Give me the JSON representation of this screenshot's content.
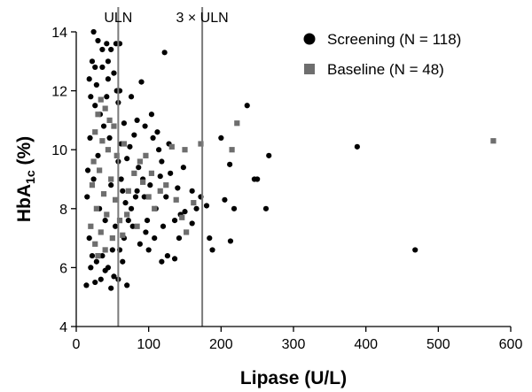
{
  "chart_data": {
    "type": "scatter",
    "xlabel": "Lipase (U/L)",
    "ylabel": "HbA1c (%)",
    "ylabel_parts": {
      "base": "HbA",
      "sub": "1c",
      "suffix": " (%)"
    },
    "xlim": [
      0,
      600
    ],
    "ylim": [
      4,
      14
    ],
    "xticks": [
      0,
      100,
      200,
      300,
      400,
      500,
      600
    ],
    "yticks": [
      4,
      6,
      8,
      10,
      12,
      14
    ],
    "grid": false,
    "legend_position": "top-right",
    "reference_lines": [
      {
        "label": "ULN",
        "x": 58,
        "color": "#7a7a7a"
      },
      {
        "label": "3 × ULN",
        "x": 174,
        "color": "#7a7a7a"
      }
    ],
    "series": [
      {
        "name": "Screening (N = 118)",
        "marker": "circle",
        "color": "#000000",
        "points": [
          [
            24,
            14.0
          ],
          [
            30,
            13.7
          ],
          [
            42,
            13.6
          ],
          [
            55,
            13.6
          ],
          [
            60,
            13.6
          ],
          [
            48,
            13.4
          ],
          [
            122,
            13.3
          ],
          [
            22,
            13.0
          ],
          [
            36,
            12.8
          ],
          [
            52,
            12.6
          ],
          [
            28,
            12.2
          ],
          [
            44,
            12.4
          ],
          [
            236,
            11.5
          ],
          [
            20,
            11.8
          ],
          [
            33,
            11.2
          ],
          [
            58,
            11.6
          ],
          [
            66,
            10.9
          ],
          [
            80,
            10.5
          ],
          [
            95,
            10.8
          ],
          [
            106,
            10.4
          ],
          [
            112,
            10.6
          ],
          [
            200,
            10.4
          ],
          [
            266,
            9.8
          ],
          [
            212,
            9.5
          ],
          [
            246,
            9.0
          ],
          [
            250,
            9.0
          ],
          [
            388,
            10.1
          ],
          [
            148,
            9.4
          ],
          [
            118,
            9.6
          ],
          [
            130,
            9.2
          ],
          [
            140,
            8.7
          ],
          [
            160,
            8.6
          ],
          [
            172,
            8.4
          ],
          [
            205,
            8.3
          ],
          [
            180,
            8.1
          ],
          [
            150,
            7.9
          ],
          [
            136,
            7.6
          ],
          [
            120,
            7.4
          ],
          [
            108,
            7.0
          ],
          [
            96,
            7.2
          ],
          [
            88,
            6.8
          ],
          [
            100,
            6.6
          ],
          [
            78,
            7.4
          ],
          [
            84,
            8.6
          ],
          [
            92,
            9.0
          ],
          [
            70,
            9.7
          ],
          [
            74,
            10.1
          ],
          [
            218,
            8.0
          ],
          [
            262,
            8.0
          ],
          [
            213,
            6.9
          ],
          [
            184,
            7.0
          ],
          [
            188,
            6.6
          ],
          [
            160,
            7.5
          ],
          [
            142,
            7.0
          ],
          [
            126,
            6.4
          ],
          [
            136,
            6.3
          ],
          [
            118,
            6.2
          ],
          [
            468,
            6.6
          ],
          [
            64,
            6.2
          ],
          [
            58,
            5.6
          ],
          [
            70,
            5.4
          ],
          [
            52,
            5.7
          ],
          [
            48,
            5.3
          ],
          [
            40,
            5.9
          ],
          [
            34,
            5.6
          ],
          [
            26,
            5.5
          ],
          [
            20,
            6.0
          ],
          [
            14,
            5.4
          ],
          [
            18,
            7.0
          ],
          [
            15,
            8.4
          ],
          [
            16,
            9.3
          ],
          [
            19,
            10.4
          ],
          [
            22,
            6.4
          ],
          [
            28,
            6.2
          ],
          [
            36,
            6.4
          ],
          [
            44,
            6.0
          ],
          [
            50,
            6.6
          ],
          [
            60,
            6.6
          ],
          [
            66,
            7.0
          ],
          [
            72,
            7.6
          ],
          [
            76,
            8.0
          ],
          [
            82,
            8.4
          ],
          [
            64,
            8.6
          ],
          [
            62,
            9.0
          ],
          [
            68,
            8.2
          ],
          [
            56,
            12.0
          ],
          [
            42,
            11.8
          ],
          [
            26,
            11.5
          ],
          [
            38,
            10.8
          ],
          [
            46,
            10.4
          ],
          [
            30,
            9.8
          ],
          [
            24,
            9.0
          ],
          [
            32,
            8.0
          ],
          [
            40,
            7.6
          ],
          [
            48,
            8.8
          ],
          [
            54,
            7.4
          ],
          [
            58,
            9.6
          ],
          [
            62,
            10.2
          ],
          [
            86,
            9.4
          ],
          [
            102,
            8.8
          ],
          [
            110,
            8.0
          ],
          [
            124,
            8.4
          ],
          [
            144,
            7.8
          ],
          [
            166,
            8.0
          ],
          [
            128,
            10.2
          ],
          [
            116,
            9.1
          ],
          [
            94,
            8.4
          ],
          [
            98,
            7.6
          ],
          [
            84,
            11.0
          ],
          [
            26,
            12.8
          ],
          [
            44,
            13.0
          ],
          [
            36,
            13.4
          ],
          [
            18,
            12.4
          ],
          [
            60,
            12.0
          ],
          [
            76,
            11.8
          ],
          [
            90,
            12.3
          ],
          [
            104,
            11.2
          ],
          [
            114,
            10.0
          ]
        ]
      },
      {
        "name": "Baseline (N = 48)",
        "marker": "square",
        "color": "#6e6e6e",
        "points": [
          [
            34,
            11.7
          ],
          [
            40,
            11.4
          ],
          [
            30,
            11.2
          ],
          [
            46,
            11.0
          ],
          [
            52,
            10.8
          ],
          [
            26,
            10.6
          ],
          [
            36,
            10.3
          ],
          [
            44,
            10.0
          ],
          [
            56,
            9.8
          ],
          [
            24,
            9.6
          ],
          [
            32,
            9.3
          ],
          [
            48,
            9.0
          ],
          [
            22,
            8.8
          ],
          [
            38,
            8.5
          ],
          [
            54,
            8.3
          ],
          [
            28,
            8.0
          ],
          [
            42,
            7.8
          ],
          [
            60,
            7.6
          ],
          [
            20,
            7.4
          ],
          [
            34,
            7.2
          ],
          [
            50,
            7.0
          ],
          [
            26,
            6.8
          ],
          [
            40,
            6.6
          ],
          [
            30,
            6.4
          ],
          [
            64,
            7.1
          ],
          [
            70,
            7.8
          ],
          [
            72,
            8.6
          ],
          [
            80,
            9.2
          ],
          [
            88,
            9.6
          ],
          [
            96,
            9.8
          ],
          [
            92,
            8.9
          ],
          [
            100,
            8.4
          ],
          [
            104,
            9.2
          ],
          [
            108,
            8.0
          ],
          [
            116,
            8.6
          ],
          [
            124,
            8.8
          ],
          [
            132,
            10.1
          ],
          [
            138,
            8.3
          ],
          [
            150,
            10.0
          ],
          [
            146,
            7.7
          ],
          [
            152,
            7.2
          ],
          [
            162,
            8.2
          ],
          [
            172,
            10.2
          ],
          [
            222,
            10.9
          ],
          [
            215,
            10.0
          ],
          [
            576,
            10.3
          ],
          [
            84,
            7.4
          ],
          [
            66,
            10.2
          ]
        ]
      }
    ]
  }
}
